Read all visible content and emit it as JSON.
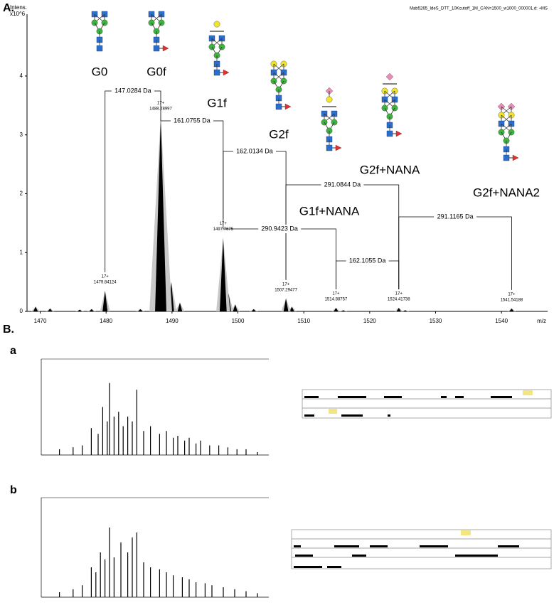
{
  "panel_a_label": "A.",
  "panel_b_label": "B.",
  "sub_a_label": "a",
  "sub_b_label": "b",
  "chart_data": [
    {
      "type": "spectrum",
      "y_label": "Intens.",
      "y_unit": "x10^6",
      "x_label": "m/z",
      "file_name": "Mab5265_IdeS_DTT_10Kcutoff_1M_CAN=1500_w1000_000001.d: +MS",
      "xlim": [
        1468,
        1547
      ],
      "ylim": [
        0,
        5.05
      ],
      "xticks": [
        1470,
        1480,
        1490,
        1500,
        1510,
        1520,
        1530,
        1540
      ],
      "yticks": [
        0,
        1,
        2,
        3,
        4
      ],
      "color": "#000000",
      "fill_color": "#c8c8c8",
      "x": [
        1469.3,
        1471.5,
        1476.0,
        1477.8,
        1485.2,
        1489.0,
        1489.9,
        1491.2,
        1498.6,
        1499.6,
        1502.4,
        1508.2,
        1516.0,
        1525.4
      ],
      "values": [
        0.08,
        0.05,
        0.03,
        0.04,
        0.04,
        0.9,
        0.5,
        0.15,
        0.3,
        0.12,
        0.04,
        0.08,
        0.02,
        0.02
      ],
      "peak_labels": [
        {
          "charge": "17+",
          "mz": 1479.84124,
          "intensity": 0.35
        },
        {
          "charge": "17+",
          "mz": 1488.28997,
          "intensity": 3.3
        },
        {
          "charge": "17+",
          "mz": 1497.7675,
          "intensity": 1.25
        },
        {
          "charge": "17+",
          "mz": 1507.29477,
          "intensity": 0.22
        },
        {
          "charge": "17+",
          "mz": 1514.88757,
          "intensity": 0.06
        },
        {
          "charge": "17+",
          "mz": 1524.41738,
          "intensity": 0.06
        },
        {
          "charge": "17+",
          "mz": 1541.54188,
          "intensity": 0.05
        }
      ],
      "annotations": [
        "147.0284 Da",
        "161.0755 Da",
        "162.0134 Da",
        "291.0844 Da",
        "290.9423 Da",
        "162.1055 Da",
        "291.1165 Da"
      ],
      "glycans": [
        "G0",
        "G0f",
        "G1f",
        "G2f",
        "G1f+NANA",
        "G2f+NANA",
        "G2f+NANA2"
      ]
    },
    {
      "type": "mini-spectrum",
      "xlim": [
        0,
        100
      ],
      "ylim": [
        0,
        100
      ],
      "color": "#000000",
      "x": [
        8,
        14,
        18,
        22,
        25,
        27,
        29,
        30,
        32,
        34,
        36,
        38,
        40,
        42,
        45,
        48,
        52,
        55,
        58,
        60,
        63,
        65,
        68,
        70,
        74,
        78,
        82,
        86,
        90,
        95
      ],
      "values": [
        6,
        8,
        10,
        28,
        22,
        50,
        35,
        75,
        40,
        45,
        30,
        40,
        35,
        68,
        25,
        30,
        22,
        25,
        18,
        20,
        15,
        18,
        12,
        15,
        10,
        10,
        8,
        6,
        6,
        3
      ]
    },
    {
      "type": "mini-spectrum",
      "xlim": [
        0,
        100
      ],
      "ylim": [
        0,
        100
      ],
      "color": "#000000",
      "x": [
        8,
        14,
        18,
        22,
        24,
        26,
        28,
        30,
        32,
        35,
        38,
        40,
        42,
        45,
        48,
        52,
        55,
        58,
        62,
        65,
        68,
        72,
        75,
        80,
        85,
        90,
        95
      ],
      "values": [
        5,
        8,
        12,
        30,
        25,
        45,
        38,
        70,
        40,
        55,
        45,
        60,
        65,
        35,
        30,
        28,
        25,
        22,
        20,
        18,
        15,
        14,
        12,
        10,
        8,
        6,
        4
      ]
    }
  ]
}
